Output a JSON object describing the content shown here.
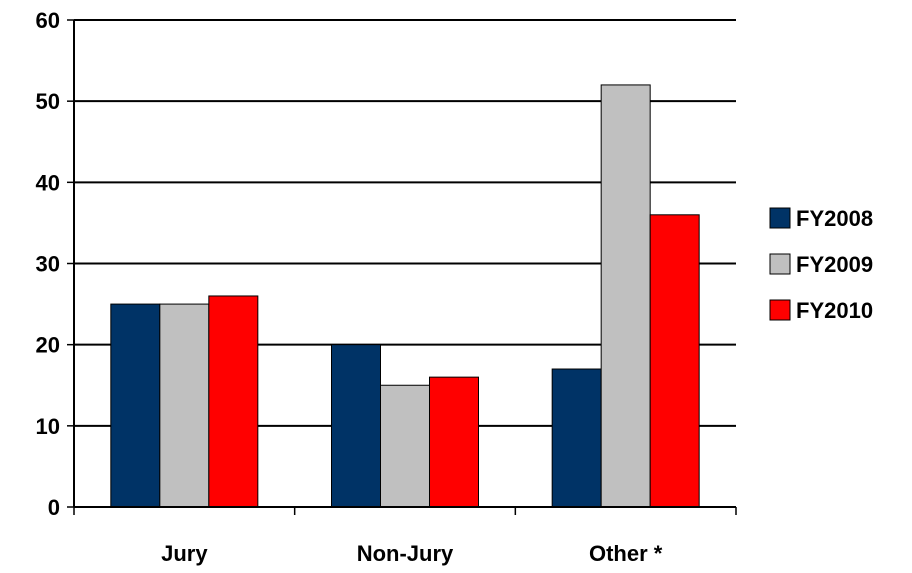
{
  "chart_data": {
    "type": "bar",
    "categories": [
      "Jury",
      "Non-Jury",
      "Other *"
    ],
    "series": [
      {
        "name": "FY2008",
        "color": "#003366",
        "values": [
          25,
          20,
          17
        ]
      },
      {
        "name": "FY2009",
        "color": "#C0C0C0",
        "values": [
          25,
          15,
          52
        ]
      },
      {
        "name": "FY2010",
        "color": "#FF0000",
        "values": [
          26,
          16,
          36
        ]
      }
    ],
    "ylim": [
      0,
      60
    ],
    "yticks": [
      0,
      10,
      20,
      30,
      40,
      50,
      60
    ],
    "grid": true,
    "legend": "right",
    "title": "",
    "xlabel": "",
    "ylabel": ""
  }
}
